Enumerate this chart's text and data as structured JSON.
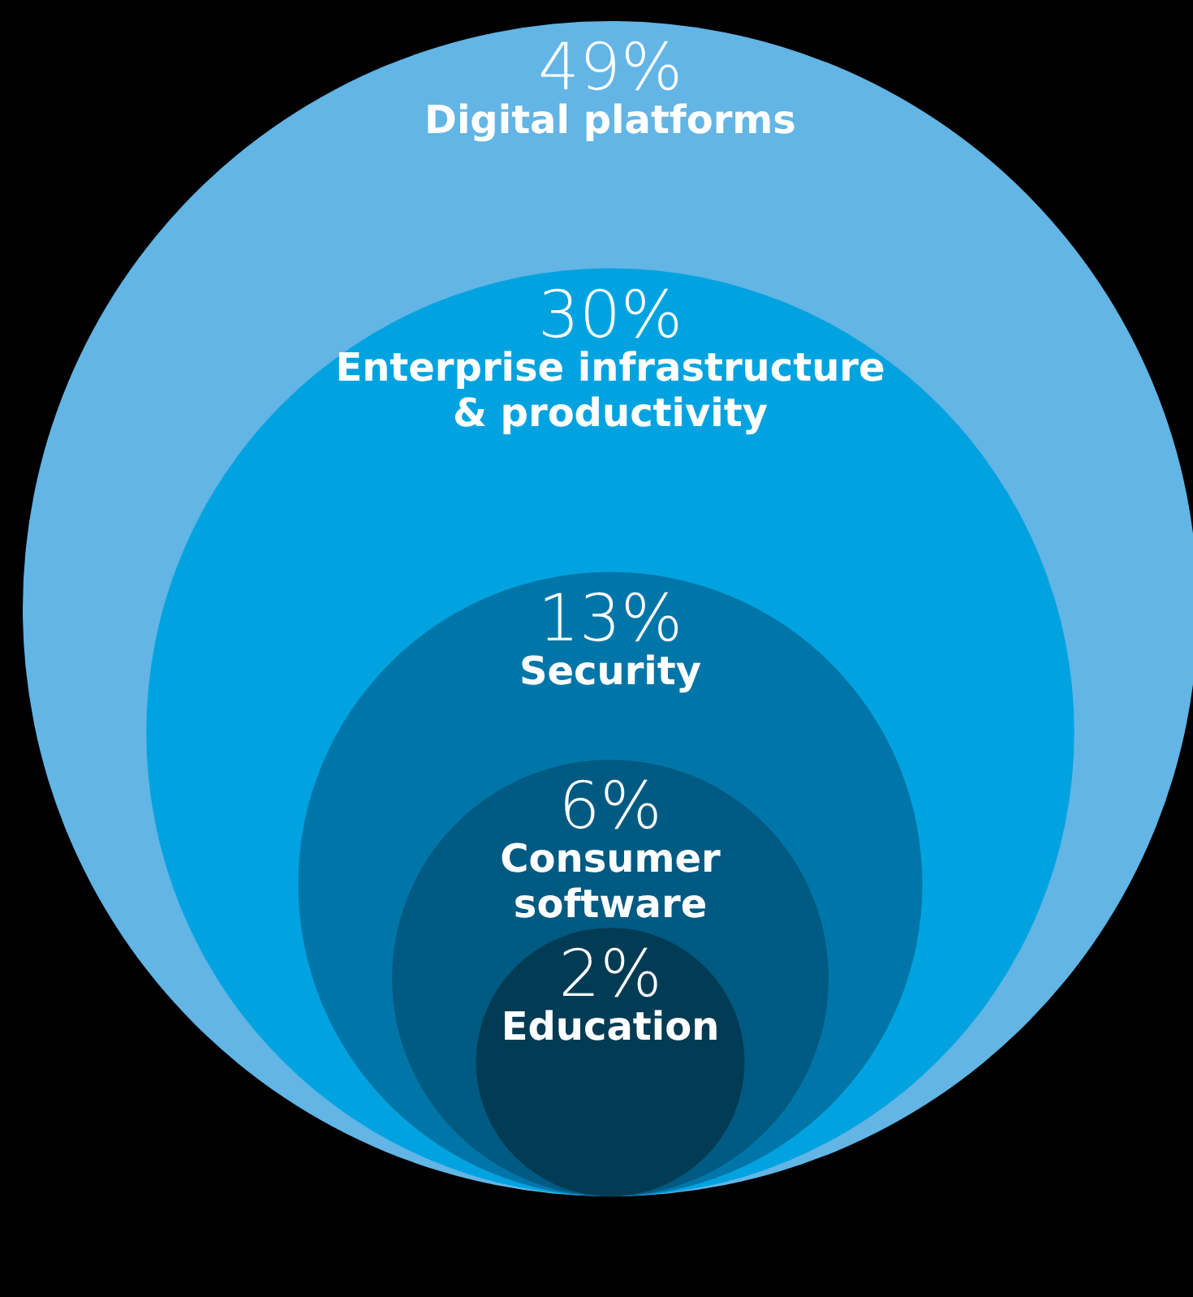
{
  "chart_data": {
    "type": "other",
    "categories": [
      "Digital platforms",
      "Enterprise infrastructure\n& productivity",
      "Security",
      "Consumer\nsoftware",
      "Education"
    ],
    "values": [
      49,
      30,
      13,
      6,
      2
    ],
    "value_labels": [
      "49%",
      "30%",
      "13%",
      "6%",
      "2%"
    ],
    "colors": [
      "#62b5e5",
      "#00a3e0",
      "#0076a8",
      "#005a82",
      "#023b54"
    ]
  }
}
